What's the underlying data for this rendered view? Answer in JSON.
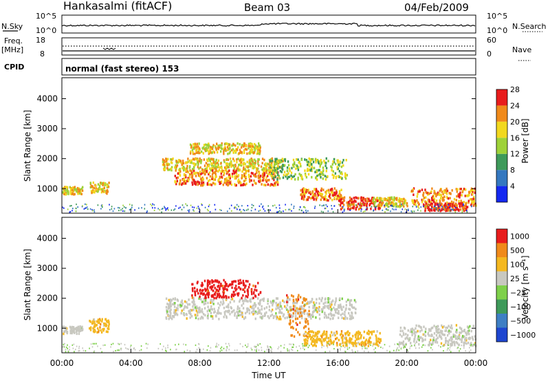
{
  "header": {
    "station": "Hankasalmi (fitACF)",
    "beam": "Beam 03",
    "date": "04/Feb/2009"
  },
  "top_panels": {
    "nsky_label": "N.Sky",
    "nsky_ticks": [
      "10^5",
      "10^0"
    ],
    "nsearch_label": "N.Search",
    "nsearch_ticks": [
      "10^5",
      "10^0"
    ],
    "freq_label": "Freq.",
    "freq_unit": "[MHz]",
    "freq_ticks": [
      "18",
      "8"
    ],
    "nave_label": "Nave",
    "nave_ticks": [
      "60",
      "0"
    ],
    "cpid_label": "CPID",
    "cpid_text": "normal (fast stereo) 153"
  },
  "chart_data": [
    {
      "type": "heatmap",
      "panel": "power",
      "ylabel": "Slant Range [km]",
      "yticks": [
        1000,
        2000,
        3000,
        4000
      ],
      "ylim": [
        180,
        4700
      ],
      "xlabel": "Time UT",
      "xticks": [
        "00:00",
        "04:00",
        "08:00",
        "12:00",
        "16:00",
        "20:00",
        "00:00"
      ],
      "colorbar": {
        "label": "Power [dB]",
        "tick_labels": [
          "4",
          "8",
          "12",
          "16",
          "20",
          "24",
          "28"
        ],
        "colors": [
          "#1428f0",
          "#3478c0",
          "#3e9a5a",
          "#9ed238",
          "#f2d81e",
          "#f08a1a",
          "#e81c1c"
        ]
      },
      "regions": [
        {
          "t0": 0.0,
          "t1": 1.2,
          "r0": 800,
          "r1": 1050,
          "level": 4
        },
        {
          "t0": 1.6,
          "t1": 2.7,
          "r0": 800,
          "r1": 1200,
          "level": 4
        },
        {
          "t0": 5.8,
          "t1": 12.8,
          "r0": 1600,
          "r1": 2000,
          "level": 4
        },
        {
          "t0": 7.4,
          "t1": 11.5,
          "r0": 2150,
          "r1": 2500,
          "level": 4
        },
        {
          "t0": 6.5,
          "t1": 12.5,
          "r0": 1100,
          "r1": 1600,
          "level": 5
        },
        {
          "t0": 12.0,
          "t1": 16.5,
          "r0": 1300,
          "r1": 2000,
          "level": 3
        },
        {
          "t0": 13.8,
          "t1": 16.2,
          "r0": 600,
          "r1": 1000,
          "level": 5
        },
        {
          "t0": 16.0,
          "t1": 18.5,
          "r0": 300,
          "r1": 700,
          "level": 6
        },
        {
          "t0": 18.0,
          "t1": 20.0,
          "r0": 400,
          "r1": 700,
          "level": 4
        },
        {
          "t0": 20.2,
          "t1": 24.0,
          "r0": 400,
          "r1": 1000,
          "level": 5
        },
        {
          "t0": 21.0,
          "t1": 23.5,
          "r0": 250,
          "r1": 500,
          "level": 6
        }
      ]
    },
    {
      "type": "heatmap",
      "panel": "velocity",
      "ylabel": "Slant Range [km]",
      "yticks": [
        1000,
        2000,
        3000,
        4000
      ],
      "ylim": [
        180,
        4700
      ],
      "xlabel": "Time UT",
      "xticks": [
        "00:00",
        "04:00",
        "08:00",
        "12:00",
        "16:00",
        "20:00",
        "00:00"
      ],
      "colorbar": {
        "label": "Velocity [m s⁻¹]",
        "tick_labels": [
          "1000",
          "500",
          "100",
          "25",
          "−25",
          "−100",
          "−500",
          "−1000"
        ],
        "colors": [
          "#1e46d0",
          "#3e7fc4",
          "#3e9a5a",
          "#7ed04a",
          "#c8c8c0",
          "#f4b820",
          "#f08a1a",
          "#e81c1c"
        ]
      },
      "regions": [
        {
          "t0": 0.0,
          "t1": 1.2,
          "r0": 800,
          "r1": 1050,
          "color": "grey"
        },
        {
          "t0": 1.5,
          "t1": 2.7,
          "r0": 850,
          "r1": 1300,
          "color": "yellow"
        },
        {
          "t0": 6.0,
          "t1": 17.0,
          "r0": 1300,
          "r1": 2000,
          "color": "grey"
        },
        {
          "t0": 7.5,
          "t1": 11.5,
          "r0": 2000,
          "r1": 2600,
          "color": "red"
        },
        {
          "t0": 13.0,
          "t1": 14.3,
          "r0": 700,
          "r1": 2100,
          "color": "orange"
        },
        {
          "t0": 14.0,
          "t1": 18.5,
          "r0": 400,
          "r1": 900,
          "color": "yellow"
        },
        {
          "t0": 19.5,
          "t1": 24.0,
          "r0": 400,
          "r1": 1100,
          "color": "grey"
        }
      ]
    }
  ]
}
